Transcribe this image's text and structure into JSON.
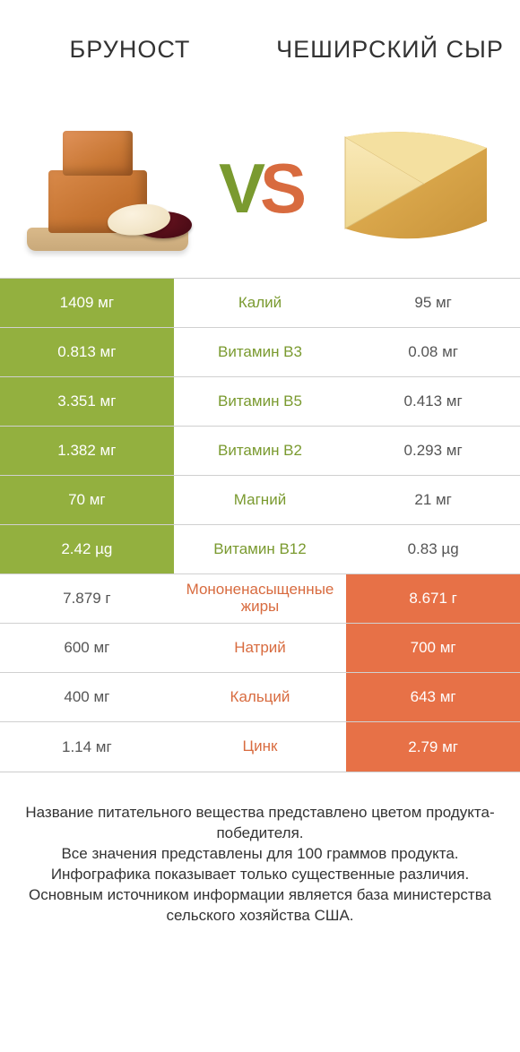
{
  "colors": {
    "left": "#93b03f",
    "right": "#e77147",
    "left_text": "#7a9a2f",
    "right_text": "#d86b3f",
    "neutral_text": "#555555"
  },
  "header": {
    "left_title": "БРУНОСТ",
    "right_title": "ЧЕШИРСКИЙ СЫР"
  },
  "vs": {
    "v": "V",
    "s": "S"
  },
  "rows": [
    {
      "nutrient": "Калий",
      "left": "1409 мг",
      "right": "95 мг",
      "winner": "left"
    },
    {
      "nutrient": "Витамин B3",
      "left": "0.813 мг",
      "right": "0.08 мг",
      "winner": "left"
    },
    {
      "nutrient": "Витамин B5",
      "left": "3.351 мг",
      "right": "0.413 мг",
      "winner": "left"
    },
    {
      "nutrient": "Витамин B2",
      "left": "1.382 мг",
      "right": "0.293 мг",
      "winner": "left"
    },
    {
      "nutrient": "Магний",
      "left": "70 мг",
      "right": "21 мг",
      "winner": "left"
    },
    {
      "nutrient": "Витамин B12",
      "left": "2.42 µg",
      "right": "0.83 µg",
      "winner": "left"
    },
    {
      "nutrient": "Мононенасыщенные жиры",
      "left": "7.879 г",
      "right": "8.671 г",
      "winner": "right"
    },
    {
      "nutrient": "Натрий",
      "left": "600 мг",
      "right": "700 мг",
      "winner": "right"
    },
    {
      "nutrient": "Кальций",
      "left": "400 мг",
      "right": "643 мг",
      "winner": "right"
    },
    {
      "nutrient": "Цинк",
      "left": "1.14 мг",
      "right": "2.79 мг",
      "winner": "right"
    }
  ],
  "footer": {
    "line1": "Название питательного вещества представлено цветом продукта-победителя.",
    "line2": "Все значения представлены для 100 граммов продукта.",
    "line3": "Инфографика показывает только существенные различия.",
    "line4": "Основным источником информации является база министерства сельского хозяйства США."
  }
}
